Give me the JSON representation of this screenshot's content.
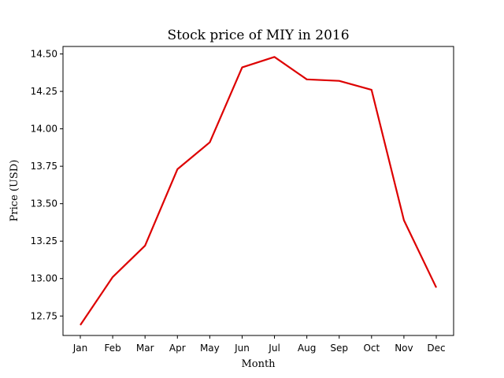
{
  "chart_data": {
    "type": "line",
    "title": "Stock price of MIY in 2016",
    "xlabel": "Month",
    "ylabel": "Price (USD)",
    "categories": [
      "Jan",
      "Feb",
      "Mar",
      "Apr",
      "May",
      "Jun",
      "Jul",
      "Aug",
      "Sep",
      "Oct",
      "Nov",
      "Dec"
    ],
    "series": [
      {
        "values": [
          12.69,
          13.01,
          13.22,
          13.73,
          13.91,
          14.41,
          14.48,
          14.33,
          14.32,
          14.26,
          13.39,
          12.94
        ],
        "color": "#dd0000"
      }
    ],
    "yticks": [
      "12.75",
      "13.00",
      "13.25",
      "13.50",
      "13.75",
      "14.00",
      "14.25",
      "14.50"
    ],
    "ylim": [
      12.62,
      14.55
    ],
    "grid": false
  }
}
